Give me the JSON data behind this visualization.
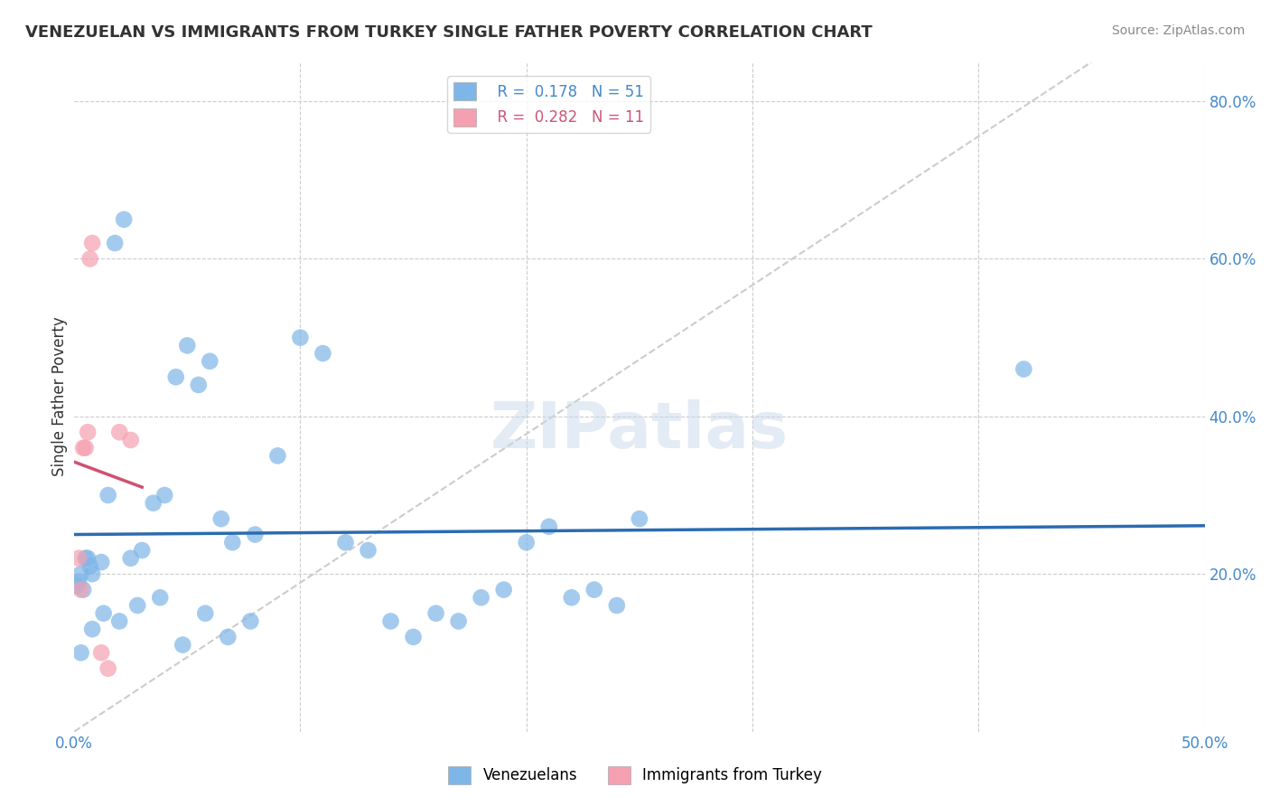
{
  "title": "VENEZUELAN VS IMMIGRANTS FROM TURKEY SINGLE FATHER POVERTY CORRELATION CHART",
  "source": "Source: ZipAtlas.com",
  "ylabel": "Single Father Poverty",
  "xlim": [
    0.0,
    0.5
  ],
  "ylim": [
    0.0,
    0.85
  ],
  "xticks": [
    0.0,
    0.1,
    0.2,
    0.3,
    0.4,
    0.5
  ],
  "yticks_right": [
    0.0,
    0.2,
    0.4,
    0.6,
    0.8
  ],
  "ytick_right_labels": [
    "",
    "20.0%",
    "40.0%",
    "60.0%",
    "80.0%"
  ],
  "blue_color": "#7EB6E8",
  "pink_color": "#F5A0B0",
  "blue_line_color": "#2B6CB0",
  "pink_line_color": "#D05070",
  "diag_line_color": "#CCCCCC",
  "watermark": "ZIPatlas",
  "venezuelan_x": [
    0.005,
    0.007,
    0.003,
    0.002,
    0.001,
    0.004,
    0.006,
    0.008,
    0.012,
    0.015,
    0.018,
    0.022,
    0.025,
    0.03,
    0.035,
    0.04,
    0.045,
    0.05,
    0.055,
    0.06,
    0.065,
    0.07,
    0.08,
    0.09,
    0.1,
    0.11,
    0.12,
    0.13,
    0.14,
    0.15,
    0.16,
    0.17,
    0.18,
    0.19,
    0.2,
    0.21,
    0.22,
    0.23,
    0.24,
    0.25,
    0.003,
    0.008,
    0.013,
    0.02,
    0.028,
    0.038,
    0.048,
    0.058,
    0.068,
    0.078,
    0.42
  ],
  "venezuelan_y": [
    0.22,
    0.21,
    0.2,
    0.19,
    0.185,
    0.18,
    0.22,
    0.2,
    0.215,
    0.3,
    0.62,
    0.65,
    0.22,
    0.23,
    0.29,
    0.3,
    0.45,
    0.49,
    0.44,
    0.47,
    0.27,
    0.24,
    0.25,
    0.35,
    0.5,
    0.48,
    0.24,
    0.23,
    0.14,
    0.12,
    0.15,
    0.14,
    0.17,
    0.18,
    0.24,
    0.26,
    0.17,
    0.18,
    0.16,
    0.27,
    0.1,
    0.13,
    0.15,
    0.14,
    0.16,
    0.17,
    0.11,
    0.15,
    0.12,
    0.14,
    0.46
  ],
  "turkey_x": [
    0.002,
    0.003,
    0.004,
    0.005,
    0.006,
    0.007,
    0.008,
    0.012,
    0.015,
    0.02,
    0.025
  ],
  "turkey_y": [
    0.22,
    0.18,
    0.36,
    0.36,
    0.38,
    0.6,
    0.62,
    0.1,
    0.08,
    0.38,
    0.37
  ]
}
